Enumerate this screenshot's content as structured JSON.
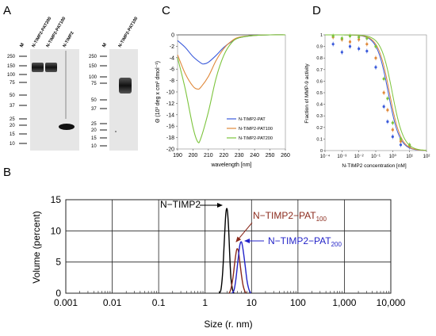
{
  "figure": {
    "panel_letters": [
      "A",
      "B",
      "C",
      "D"
    ]
  },
  "panel_a": {
    "gel1": {
      "lane_labels": [
        "M",
        "N-TIMP2-PAT200",
        "N-TIMP2-PAT100",
        "N-TIMP2"
      ],
      "marker_kda": [
        "250",
        "150",
        "100",
        "75",
        "50",
        "37",
        "25",
        "20",
        "15",
        "10"
      ]
    },
    "gel2": {
      "lane_labels": [
        "M",
        "N-TIMP2-PAT100"
      ],
      "marker_kda": [
        "250",
        "150",
        "100",
        "75",
        "50",
        "37",
        "25",
        "20",
        "15",
        "10"
      ]
    }
  },
  "colors": {
    "pat": "#3b5bdb",
    "pat100": "#e0893b",
    "pat200": "#7cc43c",
    "dls_ntimp2": "#000000",
    "dls_pat100": "#8b2a1c",
    "dls_pat200": "#2323c8",
    "gel_background": "#e6e6e6"
  },
  "chart_data": [
    {
      "panel": "C",
      "type": "line",
      "xlabel": "wavelength [nm]",
      "ylabel": "Θ (10³ deg x cm² dmol⁻¹)",
      "xlim": [
        190,
        260
      ],
      "ylim": [
        -20,
        0
      ],
      "xticks": [
        190,
        200,
        210,
        220,
        230,
        240,
        250,
        260
      ],
      "yticks": [
        0,
        -2,
        -4,
        -6,
        -8,
        -10,
        -12,
        -14,
        -16,
        -18,
        -20
      ],
      "legend": "bottom-right",
      "legend_entries": [
        "N-TIMP2-PAT",
        "N-TIMP2-PAT100",
        "N-TIMP2-PAT200"
      ],
      "series": [
        {
          "name": "N-TIMP2-PAT",
          "color": "#3b5bdb",
          "x": [
            190,
            195,
            200,
            205,
            207,
            210,
            215,
            220,
            225,
            230,
            240,
            250,
            260
          ],
          "y": [
            -1.0,
            -2.2,
            -3.8,
            -4.9,
            -5.1,
            -4.8,
            -3.6,
            -2.2,
            -1.2,
            -0.5,
            -0.1,
            0,
            0
          ]
        },
        {
          "name": "N-TIMP2-PAT100",
          "color": "#e0893b",
          "x": [
            190,
            195,
            200,
            203,
            205,
            210,
            215,
            220,
            225,
            230,
            240,
            250,
            260
          ],
          "y": [
            -3.5,
            -6.8,
            -9.0,
            -9.5,
            -9.2,
            -7.3,
            -4.5,
            -2.4,
            -1.1,
            -0.4,
            -0.1,
            0,
            0
          ]
        },
        {
          "name": "N-TIMP2-PAT200",
          "color": "#7cc43c",
          "x": [
            190,
            195,
            200,
            203,
            205,
            210,
            215,
            220,
            225,
            230,
            240,
            250,
            260
          ],
          "y": [
            -4.0,
            -9.5,
            -16.2,
            -18.7,
            -18.2,
            -13.5,
            -7.6,
            -3.6,
            -1.4,
            -0.5,
            -0.1,
            0,
            0
          ]
        }
      ]
    },
    {
      "panel": "D",
      "type": "scatter",
      "xlabel": "N-TIMP2 concentration [nM]",
      "ylabel": "Fraction of MMP-9 activity",
      "xscale": "log",
      "xlim": [
        0.0001,
        100
      ],
      "ylim": [
        0,
        1
      ],
      "xtick_labels": [
        "10⁻⁴",
        "10⁻³",
        "10⁻²",
        "10⁻¹",
        "10⁰",
        "10¹",
        "10²"
      ],
      "ytick_labels": [
        "0",
        "0.1",
        "0.2",
        "0.3",
        "0.4",
        "0.5",
        "0.6",
        "0.7",
        "0.8",
        "0.9",
        "1"
      ],
      "series": [
        {
          "color": "#3b5bdb",
          "x": [
            0.0003,
            0.001,
            0.003,
            0.01,
            0.03,
            0.1,
            0.3,
            0.5,
            1,
            3,
            10
          ],
          "y": [
            0.92,
            0.85,
            0.9,
            0.88,
            0.86,
            0.72,
            0.38,
            0.25,
            0.12,
            0.05,
            0.03
          ],
          "fit": {
            "ic50": 0.55,
            "hill": 1.3
          }
        },
        {
          "color": "#e0893b",
          "x": [
            0.0003,
            0.001,
            0.003,
            0.01,
            0.03,
            0.1,
            0.3,
            0.5,
            1,
            3,
            10
          ],
          "y": [
            0.98,
            0.96,
            0.94,
            0.96,
            0.92,
            0.8,
            0.5,
            0.35,
            0.18,
            0.08,
            0.04
          ],
          "fit": {
            "ic50": 0.65,
            "hill": 1.3
          }
        },
        {
          "color": "#7cc43c",
          "x": [
            0.0003,
            0.001,
            0.003,
            0.01,
            0.03,
            0.1,
            0.3,
            0.5,
            1,
            3,
            10
          ],
          "y": [
            0.99,
            0.97,
            0.99,
            0.98,
            0.97,
            0.9,
            0.62,
            0.45,
            0.24,
            0.1,
            0.05
          ],
          "fit": {
            "ic50": 0.95,
            "hill": 1.3
          }
        }
      ]
    },
    {
      "panel": "B",
      "type": "line",
      "xlabel": "Size (r. nm)",
      "ylabel": "Volume (percent)",
      "xscale": "log",
      "xlim": [
        0.001,
        10000
      ],
      "ylim": [
        0,
        15
      ],
      "xtick_labels": [
        "0.001",
        "0.01",
        "0.1",
        "1",
        "10",
        "100",
        "1,000",
        "10,000"
      ],
      "yticks": [
        0,
        5,
        10,
        15
      ],
      "series": [
        {
          "name": "N−TIMP2",
          "color": "#000000",
          "x": [
            2.0,
            2.2,
            2.4,
            2.6,
            2.8,
            3.0,
            3.2,
            3.4,
            3.6,
            3.9,
            4.2
          ],
          "y": [
            0,
            0.6,
            3.5,
            8.5,
            12.8,
            13.4,
            10.6,
            6.0,
            2.4,
            0.6,
            0
          ]
        },
        {
          "name": "N−TIMP2−PAT100",
          "color": "#8b2a1c",
          "x": [
            3.3,
            3.6,
            4.0,
            4.4,
            4.8,
            5.2,
            5.6,
            6.1,
            6.6,
            7.2,
            7.8
          ],
          "y": [
            0,
            0.7,
            2.6,
            5.2,
            7.0,
            6.8,
            5.0,
            2.8,
            1.2,
            0.3,
            0
          ]
        },
        {
          "name": "N−TIMP2−PAT200",
          "color": "#2323c8",
          "x": [
            3.8,
            4.2,
            4.6,
            5.1,
            5.6,
            6.1,
            6.6,
            7.3,
            8.0,
            8.8,
            9.7
          ],
          "y": [
            0,
            0.5,
            2.2,
            5.2,
            7.7,
            8.2,
            6.9,
            4.4,
            2.0,
            0.6,
            0
          ]
        }
      ],
      "annotations": [
        {
          "base": "N−TIMP2",
          "sub": ""
        },
        {
          "base": "N−TIMP2−PAT",
          "sub": "100"
        },
        {
          "base": "N−TIMP2−PAT",
          "sub": "200"
        }
      ]
    }
  ]
}
